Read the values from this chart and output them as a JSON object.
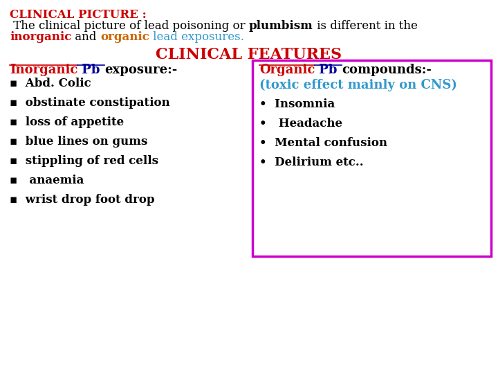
{
  "bg_color": "#ffffff",
  "title_line1": "CLINICAL PICTURE :",
  "title_line1_color": "#cc0000",
  "features_title": "CLINICAL FEATURES",
  "features_title_color": "#cc0000",
  "left_heading_parts": [
    {
      "text": "Inorganic",
      "color": "#cc0000",
      "bold": true,
      "underline": true
    },
    {
      "text": " Pb ",
      "color": "#000099",
      "bold": true,
      "underline": true
    },
    {
      "text": "exposure:-",
      "color": "#000000",
      "bold": true,
      "underline": false
    }
  ],
  "left_items": [
    "Abd. Colic",
    "obstinate constipation",
    "loss of appetite",
    "blue lines on gums",
    "stippling of red cells",
    " anaemia",
    "wrist drop foot drop"
  ],
  "right_heading_parts": [
    {
      "text": "Organic",
      "color": "#cc0000",
      "bold": true,
      "underline": true
    },
    {
      "text": " Pb ",
      "color": "#000099",
      "bold": true,
      "underline": true
    },
    {
      "text": "compounds:-",
      "color": "#000000",
      "bold": true,
      "underline": false
    }
  ],
  "right_subtitle": "(toxic effect mainly on CNS)",
  "right_subtitle_color": "#3399cc",
  "right_items": [
    "Insomnia",
    " Headache",
    "Mental confusion",
    "Delirium etc.."
  ],
  "box_border_color": "#cc00cc",
  "box_fill_color": "#ffffff",
  "left_strip_color": "#ccff00",
  "font_family": "DejaVu Serif"
}
